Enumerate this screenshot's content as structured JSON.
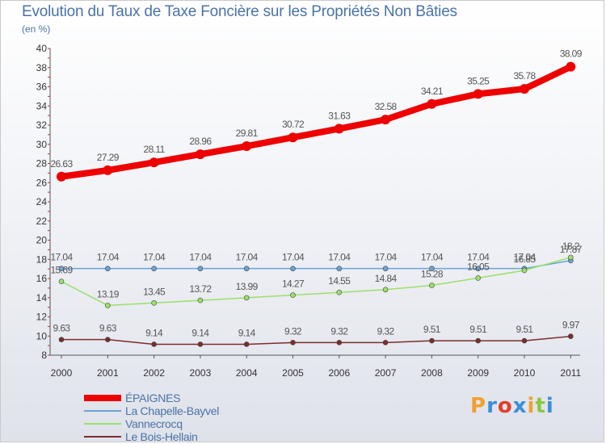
{
  "chart_data": {
    "type": "line",
    "title": "Evolution du Taux de Taxe Foncière sur les Propriétés Non Bâties",
    "ylabel": "(en %)",
    "xlabel": "",
    "categories": [
      "2000",
      "2001",
      "2002",
      "2003",
      "2004",
      "2005",
      "2006",
      "2007",
      "2008",
      "2009",
      "2010",
      "2011"
    ],
    "ylim": [
      8,
      40
    ],
    "yticks": [
      "8",
      "10",
      "12",
      "14",
      "16",
      "18",
      "20",
      "22",
      "24",
      "26",
      "28",
      "30",
      "32",
      "34",
      "36",
      "38",
      "40"
    ],
    "series": [
      {
        "name": "ÉPAIGNES",
        "color": "#ee0000",
        "values": [
          26.63,
          27.29,
          28.11,
          28.96,
          29.81,
          30.72,
          31.63,
          32.58,
          34.21,
          35.25,
          35.78,
          38.09
        ],
        "labels": [
          "26.63",
          "27.29",
          "28.11",
          "28.96",
          "29.81",
          "30.72",
          "31.63",
          "32.58",
          "34.21",
          "35.25",
          "35.78",
          "38.09"
        ]
      },
      {
        "name": "La Chapelle-Bayvel",
        "color": "#6ba3d6",
        "values": [
          17.04,
          17.04,
          17.04,
          17.04,
          17.04,
          17.04,
          17.04,
          17.04,
          17.04,
          17.04,
          17.04,
          17.87
        ],
        "labels": [
          "17.04",
          "17.04",
          "17.04",
          "17.04",
          "17.04",
          "17.04",
          "17.04",
          "17.04",
          "17.04",
          "17.04",
          "17.04",
          "17.87"
        ]
      },
      {
        "name": "Vannecrocq",
        "color": "#9ce06a",
        "values": [
          15.69,
          13.19,
          13.45,
          13.72,
          13.99,
          14.27,
          14.55,
          14.84,
          15.28,
          16.05,
          16.85,
          18.2
        ],
        "labels": [
          "15.69",
          "13.19",
          "13.45",
          "13.72",
          "13.99",
          "14.27",
          "14.55",
          "14.84",
          "15.28",
          "16.05",
          "16.85",
          "18.2"
        ]
      },
      {
        "name": "Le Bois-Hellain",
        "color": "#7a2e2e",
        "values": [
          9.63,
          9.63,
          9.14,
          9.14,
          9.14,
          9.32,
          9.32,
          9.32,
          9.51,
          9.51,
          9.51,
          9.97
        ],
        "labels": [
          "9.63",
          "9.63",
          "9.14",
          "9.14",
          "9.14",
          "9.32",
          "9.32",
          "9.32",
          "9.51",
          "9.51",
          "9.51",
          "9.97"
        ]
      }
    ],
    "legend_position": "bottom-left"
  },
  "logo": {
    "text": "Proxiti",
    "letters": [
      "P",
      "r",
      "o",
      "x",
      "i",
      "t",
      "i"
    ],
    "colors": [
      "#f0a030",
      "#3a8fd8",
      "#e0402a",
      "#3a8fd8",
      "#f0a030",
      "#8cc83c",
      "#3a8fd8"
    ]
  }
}
